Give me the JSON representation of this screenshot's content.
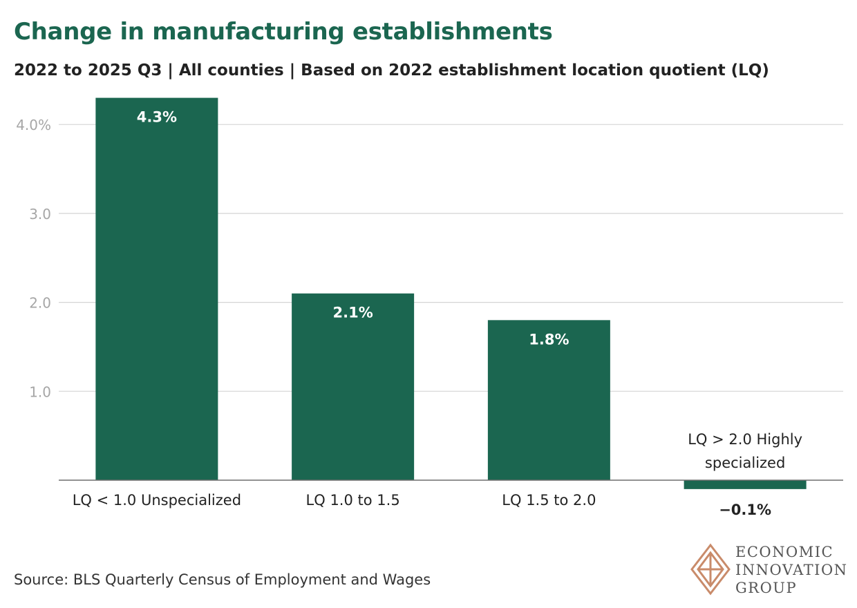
{
  "header": {
    "title": "Change in manufacturing establishments",
    "subtitle": "2022 to 2025 Q3 | All counties | Based on 2022 establishment location quotient (LQ)"
  },
  "chart_data": {
    "type": "bar",
    "title": "Change in manufacturing establishments",
    "subtitle": "2022 to 2025 Q3 | All counties | Based on 2022 establishment location quotient (LQ)",
    "categories": [
      "LQ < 1.0 Unspecialized",
      "LQ 1.0 to 1.5",
      "LQ 1.5 to 2.0",
      "LQ > 2.0 Highly specialized"
    ],
    "values": [
      4.3,
      2.1,
      1.8,
      -0.1
    ],
    "data_labels": [
      "4.3%",
      "2.1%",
      "1.8%",
      "−0.1%"
    ],
    "yticks": [
      {
        "value": 1,
        "label": "1.0"
      },
      {
        "value": 2,
        "label": "2.0"
      },
      {
        "value": 3,
        "label": "3.0"
      },
      {
        "value": 4,
        "label": "4.0%"
      }
    ],
    "xlabel": "",
    "ylabel": "",
    "ylim": [
      -0.1,
      4.3
    ],
    "grid": true,
    "bar_color": "#1b6650"
  },
  "footer": {
    "source": "Source: BLS Quarterly Census of Employment and Wages",
    "logo_lines": [
      "ECONOMIC",
      "INNOVATION",
      "GROUP"
    ],
    "logo_color": "#c98b6a"
  }
}
